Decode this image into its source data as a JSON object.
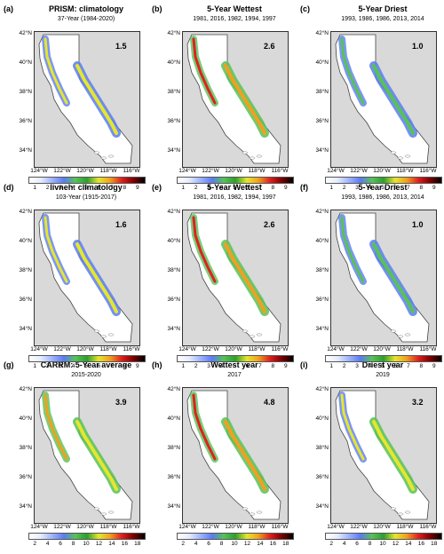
{
  "lat_labels": [
    "42°N",
    "40°N",
    "38°N",
    "36°N",
    "34°N"
  ],
  "lon_labels": [
    "124°W",
    "122°W",
    "120°W",
    "118°W",
    "116°W"
  ],
  "colorbars": {
    "row1": [
      "1",
      "2",
      "3",
      "4",
      "5",
      "6",
      "7",
      "8",
      "9"
    ],
    "row2": [
      "1",
      "2",
      "3",
      "4",
      "5",
      "6",
      "7",
      "8",
      "9"
    ],
    "row3": [
      "2",
      "4",
      "6",
      "8",
      "10",
      "12",
      "14",
      "16",
      "18"
    ]
  },
  "colors": {
    "ocean": "#d9d9d9",
    "land_low": "#ffffff",
    "ramp": [
      "#ffffff",
      "#e6ecff",
      "#9db3ff",
      "#5b7cf0",
      "#57c257",
      "#2e9e2e",
      "#e6e62e",
      "#f0a020",
      "#e02020",
      "#800000",
      "#000000"
    ]
  },
  "panels": [
    {
      "label": "(a)",
      "title": "PRISM: climatology",
      "subtitle": "37-Year (1984-2020)",
      "value": "1.5",
      "intensity": 0.45
    },
    {
      "label": "(b)",
      "title": "5-Year Wettest",
      "subtitle": "1981, 2016, 1982, 1994, 1997",
      "value": "2.6",
      "intensity": 0.85
    },
    {
      "label": "(c)",
      "title": "5-Year Driest",
      "subtitle": "1993, 1986, 1986, 2013, 2014",
      "value": "1.0",
      "intensity": 0.2
    },
    {
      "label": "(d)",
      "title": "livneh: climatology",
      "subtitle": "103-Year (1915-2017)",
      "value": "1.6",
      "intensity": 0.45
    },
    {
      "label": "(e)",
      "title": "5-Year Wettest",
      "subtitle": "1981, 2016, 1982, 1994, 1997",
      "value": "2.6",
      "intensity": 0.8
    },
    {
      "label": "(f)",
      "title": "5-Year Driest",
      "subtitle": "1993, 1986, 1986, 2013, 2014",
      "value": "1.0",
      "intensity": 0.2
    },
    {
      "label": "(g)",
      "title": "CARRM: 5-Year average",
      "subtitle": "2015-2020",
      "value": "3.9",
      "intensity": 0.6
    },
    {
      "label": "(h)",
      "title": "Wettest year",
      "subtitle": "2017",
      "value": "4.8",
      "intensity": 0.8
    },
    {
      "label": "(i)",
      "title": "Driest year",
      "subtitle": "2019",
      "value": "3.2",
      "intensity": 0.5
    }
  ]
}
